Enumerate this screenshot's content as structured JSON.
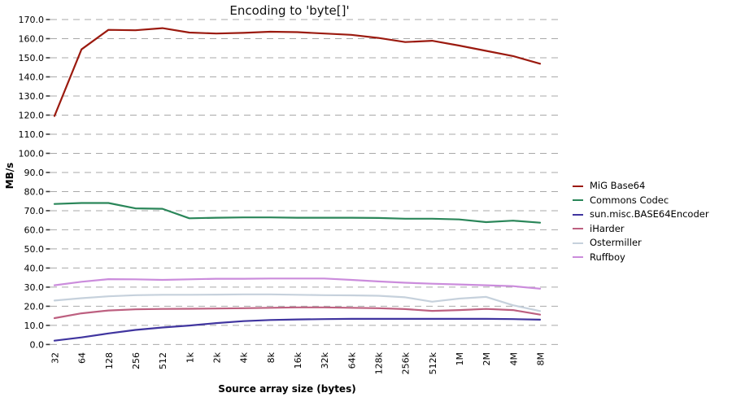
{
  "chart_data": {
    "type": "line",
    "title": "Encoding to 'byte[]'",
    "xlabel": "Source array size (bytes)",
    "ylabel": "MB/s",
    "categories": [
      "32",
      "64",
      "128",
      "256",
      "512",
      "1k",
      "2k",
      "4k",
      "8k",
      "16k",
      "32k",
      "64k",
      "128k",
      "256k",
      "512k",
      "1M",
      "2M",
      "4M",
      "8M"
    ],
    "ylim": [
      0,
      170
    ],
    "ytick_step": 10,
    "ytick_format": "0.0",
    "grid": "horizontal-dashed",
    "legend_position": "right",
    "gridline_color": "#a9a9a9",
    "series": [
      {
        "name": "MiG Base64",
        "color": "#9b1a0f",
        "values": [
          119.5,
          154.4,
          164.6,
          164.4,
          165.5,
          163.2,
          162.7,
          163.0,
          163.6,
          163.4,
          162.7,
          162.0,
          160.4,
          158.2,
          158.9,
          156.4,
          153.6,
          150.9,
          146.9
        ]
      },
      {
        "name": "Commons Codec",
        "color": "#2a8659",
        "values": [
          73.5,
          74.0,
          74.0,
          71.2,
          71.0,
          66.0,
          66.3,
          66.5,
          66.5,
          66.3,
          66.3,
          66.3,
          66.2,
          65.8,
          65.8,
          65.4,
          64.0,
          64.8,
          63.7
        ]
      },
      {
        "name": "sun.misc.BASE64Encoder",
        "color": "#40359f",
        "values": [
          2.0,
          3.7,
          5.8,
          7.6,
          8.9,
          9.9,
          11.2,
          12.2,
          12.8,
          13.1,
          13.3,
          13.4,
          13.4,
          13.4,
          13.4,
          13.4,
          13.4,
          13.3,
          13.0
        ]
      },
      {
        "name": "iHarder",
        "color": "#bd6080",
        "values": [
          13.8,
          16.3,
          17.8,
          18.4,
          18.6,
          18.7,
          18.8,
          19.0,
          19.2,
          19.4,
          19.4,
          19.2,
          19.0,
          18.5,
          17.6,
          18.0,
          18.6,
          18.0,
          15.6
        ]
      },
      {
        "name": "Ostermiller",
        "color": "#c6d1dc",
        "values": [
          23.0,
          24.2,
          25.2,
          25.8,
          26.0,
          26.0,
          26.1,
          26.2,
          26.2,
          26.0,
          25.8,
          25.7,
          25.5,
          24.7,
          22.4,
          24.0,
          24.9,
          20.5,
          17.5
        ]
      },
      {
        "name": "Ruffboy",
        "color": "#cb8cdc",
        "values": [
          31.0,
          32.8,
          34.2,
          34.1,
          33.8,
          34.1,
          34.4,
          34.4,
          34.5,
          34.5,
          34.5,
          33.8,
          33.0,
          32.3,
          31.8,
          31.4,
          31.0,
          30.5,
          29.2
        ]
      }
    ]
  }
}
